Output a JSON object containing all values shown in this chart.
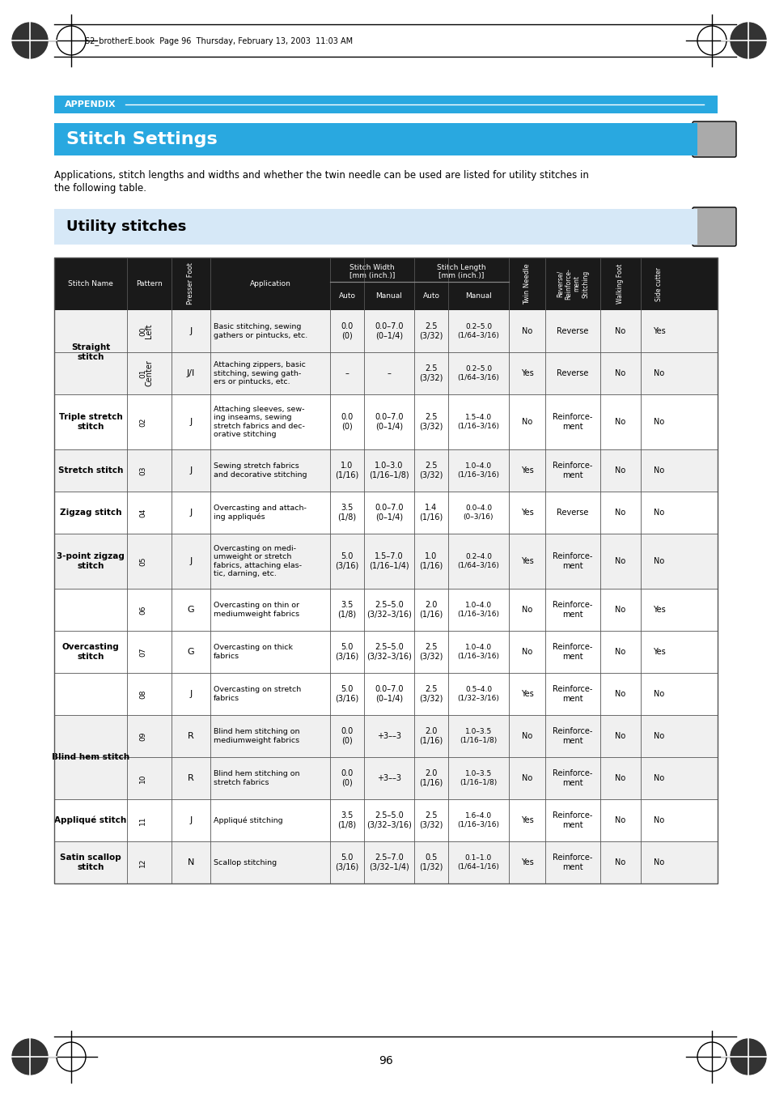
{
  "page_header_text": "S2_brotherE.book  Page 96  Thursday, February 13, 2003  11:03 AM",
  "appendix_label": "APPENDIX",
  "title": "Stitch Settings",
  "intro_text": "Applications, stitch lengths and widths and whether the twin needle can be used are listed for utility stitches in\nthe following table.",
  "section_title": "Utility stitches",
  "page_number": "96",
  "table_header_bg": "#1a1a1a",
  "table_header_fg": "#ffffff",
  "appendix_bar_color": "#29a8e0",
  "title_bar_color": "#29a8e0",
  "section_bar_color": "#d6e8f7",
  "col_headers": [
    "Stitch Name",
    "Pattern",
    "Presser Foot",
    "Application",
    "Auto",
    "Manual",
    "Auto",
    "Manual",
    "Twin Needle",
    "Reverse/\nReinforcement\nStitching",
    "Walking Foot",
    "Side cutter"
  ],
  "col_group_headers": [
    "Stitch Width\n[mm (inch.)]",
    "Stitch Length\n[mm (inch.)]"
  ],
  "rows": [
    {
      "stitch_name": "Straight\nstitch",
      "sub_name": "Left",
      "pattern_num": "00",
      "presser_foot": "J",
      "application": "Basic stitching, sewing\ngathers or pintucks, etc.",
      "auto_width": "0.0\n(0)",
      "manual_width": "0.0–7.0\n(0–1/4)",
      "auto_length": "2.5\n(3/32)",
      "manual_length": "0.2–5.0\n(1/64–3/16)",
      "twin_needle": "No",
      "reverse": "Reverse",
      "walking_foot": "No",
      "side_cutter": "Yes",
      "group_row": true,
      "group_row_first": true,
      "bg": "#f0f0f0"
    },
    {
      "stitch_name": "",
      "sub_name": "Center",
      "pattern_num": "01",
      "presser_foot": "J/I",
      "application": "Attaching zippers, basic\nstitching, sewing gath-\ners or pintucks, etc.",
      "auto_width": "–",
      "manual_width": "–",
      "auto_length": "2.5\n(3/32)",
      "manual_length": "0.2–5.0\n(1/64–3/16)",
      "twin_needle": "Yes",
      "reverse": "Reverse",
      "walking_foot": "No",
      "side_cutter": "No",
      "group_row": true,
      "group_row_first": false,
      "bg": "#f0f0f0"
    },
    {
      "stitch_name": "Triple stretch\nstitch",
      "sub_name": "",
      "pattern_num": "02",
      "presser_foot": "J",
      "application": "Attaching sleeves, sew-\ning inseams, sewing\nstretch fabrics and dec-\norative stitching",
      "auto_width": "0.0\n(0)",
      "manual_width": "0.0–7.0\n(0–1/4)",
      "auto_length": "2.5\n(3/32)",
      "manual_length": "1.5–4.0\n(1/16–3/16)",
      "twin_needle": "No",
      "reverse": "Reinforce-\nment",
      "walking_foot": "No",
      "side_cutter": "No",
      "group_row": false,
      "bg": "#ffffff"
    },
    {
      "stitch_name": "Stretch stitch",
      "sub_name": "",
      "pattern_num": "03",
      "presser_foot": "J",
      "application": "Sewing stretch fabrics\nand decorative stitching",
      "auto_width": "1.0\n(1/16)",
      "manual_width": "1.0–3.0\n(1/16–1/8)",
      "auto_length": "2.5\n(3/32)",
      "manual_length": "1.0–4.0\n(1/16–3/16)",
      "twin_needle": "Yes",
      "reverse": "Reinforce-\nment",
      "walking_foot": "No",
      "side_cutter": "No",
      "group_row": false,
      "bg": "#f0f0f0"
    },
    {
      "stitch_name": "Zigzag stitch",
      "sub_name": "",
      "pattern_num": "04",
      "presser_foot": "J",
      "application": "Overcasting and attach-\ning appliqués",
      "auto_width": "3.5\n(1/8)",
      "manual_width": "0.0–7.0\n(0–1/4)",
      "auto_length": "1.4\n(1/16)",
      "manual_length": "0.0–4.0\n(0–3/16)",
      "twin_needle": "Yes",
      "reverse": "Reverse",
      "walking_foot": "No",
      "side_cutter": "No",
      "group_row": false,
      "bg": "#ffffff"
    },
    {
      "stitch_name": "3-point zigzag\nstitch",
      "sub_name": "",
      "pattern_num": "05",
      "presser_foot": "J",
      "application": "Overcasting on medi-\numweight or stretch\nfabrics, attaching elas-\ntic, darning, etc.",
      "auto_width": "5.0\n(3/16)",
      "manual_width": "1.5–7.0\n(1/16–1/4)",
      "auto_length": "1.0\n(1/16)",
      "manual_length": "0.2–4.0\n(1/64–3/16)",
      "twin_needle": "Yes",
      "reverse": "Reinforce-\nment",
      "walking_foot": "No",
      "side_cutter": "No",
      "group_row": false,
      "bg": "#f0f0f0"
    },
    {
      "stitch_name": "Overcasting\nstitch",
      "sub_name": "",
      "pattern_num": "06",
      "presser_foot": "G",
      "application": "Overcasting on thin or\nmediumweight fabrics",
      "auto_width": "3.5\n(1/8)",
      "manual_width": "2.5–5.0\n(3/32–3/16)",
      "auto_length": "2.0\n(1/16)",
      "manual_length": "1.0–4.0\n(1/16–3/16)",
      "twin_needle": "No",
      "reverse": "Reinforce-\nment",
      "walking_foot": "No",
      "side_cutter": "Yes",
      "group_row": true,
      "group_row_first": true,
      "bg": "#ffffff"
    },
    {
      "stitch_name": "",
      "sub_name": "",
      "pattern_num": "07",
      "presser_foot": "G",
      "application": "Overcasting on thick\nfabrics",
      "auto_width": "5.0\n(3/16)",
      "manual_width": "2.5–5.0\n(3/32–3/16)",
      "auto_length": "2.5\n(3/32)",
      "manual_length": "1.0–4.0\n(1/16–3/16)",
      "twin_needle": "No",
      "reverse": "Reinforce-\nment",
      "walking_foot": "No",
      "side_cutter": "Yes",
      "group_row": true,
      "group_row_first": false,
      "bg": "#ffffff"
    },
    {
      "stitch_name": "",
      "sub_name": "",
      "pattern_num": "08",
      "presser_foot": "J",
      "application": "Overcasting on stretch\nfabrics",
      "auto_width": "5.0\n(3/16)",
      "manual_width": "0.0–7.0\n(0–1/4)",
      "auto_length": "2.5\n(3/32)",
      "manual_length": "0.5–4.0\n(1/32–3/16)",
      "twin_needle": "Yes",
      "reverse": "Reinforce-\nment",
      "walking_foot": "No",
      "side_cutter": "No",
      "group_row": true,
      "group_row_first": false,
      "bg": "#ffffff"
    },
    {
      "stitch_name": "Blind hem stitch",
      "sub_name": "",
      "pattern_num": "09",
      "presser_foot": "R",
      "application": "Blind hem stitching on\nmediumweight fabrics",
      "auto_width": "0.0\n(0)",
      "manual_width": "+3––3",
      "auto_length": "2.0\n(1/16)",
      "manual_length": "1.0–3.5\n(1/16–1/8)",
      "twin_needle": "No",
      "reverse": "Reinforce-\nment",
      "walking_foot": "No",
      "side_cutter": "No",
      "group_row": true,
      "group_row_first": true,
      "bg": "#f0f0f0"
    },
    {
      "stitch_name": "",
      "sub_name": "",
      "pattern_num": "10",
      "presser_foot": "R",
      "application": "Blind hem stitching on\nstretch fabrics",
      "auto_width": "0.0\n(0)",
      "manual_width": "+3––3",
      "auto_length": "2.0\n(1/16)",
      "manual_length": "1.0–3.5\n(1/16–1/8)",
      "twin_needle": "No",
      "reverse": "Reinforce-\nment",
      "walking_foot": "No",
      "side_cutter": "No",
      "group_row": true,
      "group_row_first": false,
      "bg": "#f0f0f0"
    },
    {
      "stitch_name": "Appliqué stitch",
      "sub_name": "",
      "pattern_num": "11",
      "presser_foot": "J",
      "application": "Appliqué stitching",
      "auto_width": "3.5\n(1/8)",
      "manual_width": "2.5–5.0\n(3/32–3/16)",
      "auto_length": "2.5\n(3/32)",
      "manual_length": "1.6–4.0\n(1/16–3/16)",
      "twin_needle": "Yes",
      "reverse": "Reinforce-\nment",
      "walking_foot": "No",
      "side_cutter": "No",
      "group_row": false,
      "bg": "#ffffff"
    },
    {
      "stitch_name": "Satin scallop\nstitch",
      "sub_name": "",
      "pattern_num": "12",
      "presser_foot": "N",
      "application": "Scallop stitching",
      "auto_width": "5.0\n(3/16)",
      "manual_width": "2.5–7.0\n(3/32–1/4)",
      "auto_length": "0.5\n(1/32)",
      "manual_length": "0.1–1.0\n(1/64–1/16)",
      "twin_needle": "Yes",
      "reverse": "Reinforce-\nment",
      "walking_foot": "No",
      "side_cutter": "No",
      "group_row": false,
      "bg": "#f0f0f0"
    }
  ]
}
